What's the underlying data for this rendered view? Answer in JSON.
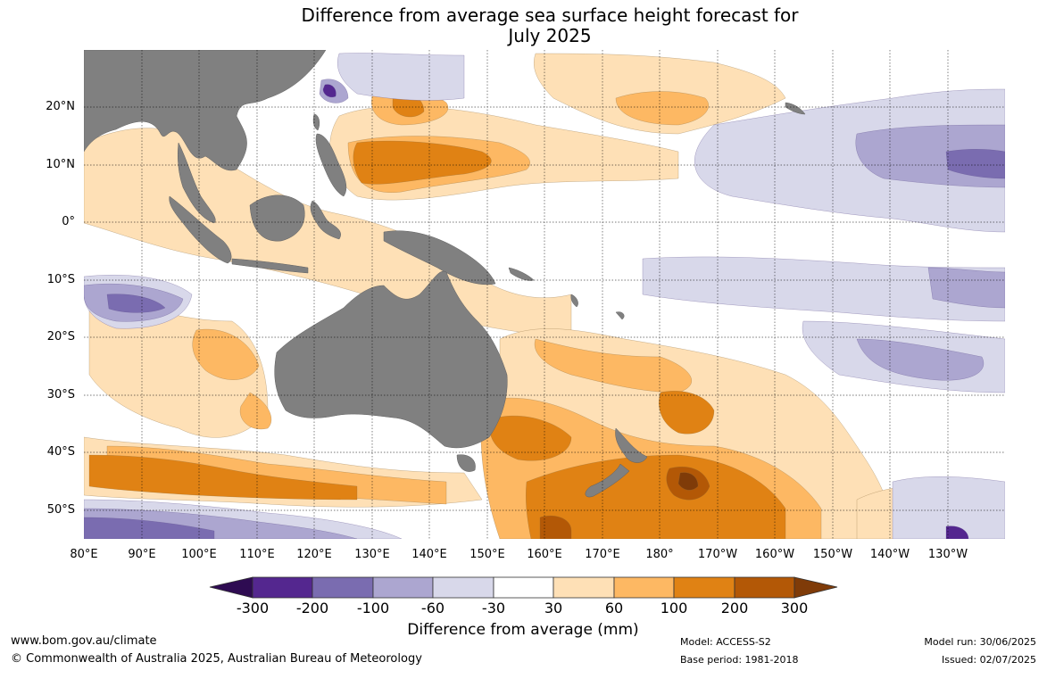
{
  "title": {
    "line1": "Difference from average sea surface height forecast for",
    "line2": "July 2025"
  },
  "map": {
    "projection": "equirectangular",
    "lon_range": [
      80,
      240
    ],
    "lat_range": [
      -55,
      30
    ],
    "land_color": "#808080",
    "gridlines": true,
    "lat_ticks": [
      "20°N",
      "10°N",
      "0°",
      "10°S",
      "20°S",
      "30°S",
      "40°S",
      "50°S"
    ],
    "lon_ticks": [
      "80°E",
      "90°E",
      "100°E",
      "110°E",
      "120°E",
      "130°E",
      "140°E",
      "150°E",
      "160°E",
      "170°E",
      "180°",
      "170°W",
      "160°W",
      "150°W",
      "140°W",
      "130°W"
    ]
  },
  "colorbar": {
    "labels": [
      "-300",
      "-200",
      "-100",
      "-60",
      "-30",
      "30",
      "60",
      "100",
      "200",
      "300"
    ],
    "colors": [
      "#2e0b52",
      "#54278f",
      "#7a6cb0",
      "#aca6d0",
      "#d8d8ea",
      "#ffffff",
      "#fee0b6",
      "#fdb863",
      "#e08214",
      "#b35806",
      "#7f3b08"
    ],
    "title": "Difference from average (mm)"
  },
  "footer": {
    "website": "www.bom.gov.au/climate",
    "copyright": "© Commonwealth of Australia 2025, Australian Bureau of Meteorology",
    "model": "Model: ACCESS-S2",
    "base_period": "Base period: 1981-2018",
    "model_run": "Model run: 30/06/2025",
    "issued": "Issued: 02/07/2025"
  }
}
